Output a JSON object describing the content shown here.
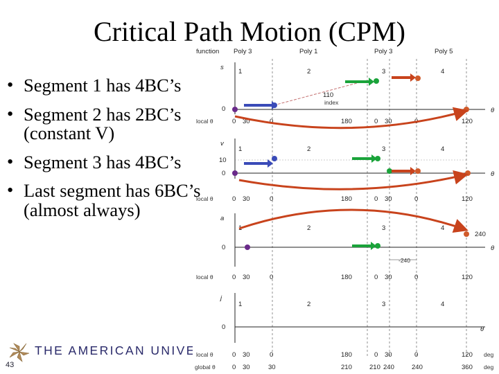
{
  "title": "Critical Path Motion (CPM)",
  "bullets": [
    "Segment 1 has 4BC’s",
    "Segment 2 has 2BC’s (constant V)",
    "Segment 3 has 4BC’s",
    "Last segment has 6BC’s (almost always)"
  ],
  "bullet_symbol": "•",
  "footer": {
    "logo_text": "THE AMERICAN UNIVERSIT",
    "page_number": "43"
  },
  "diagram": {
    "header": {
      "function": "function",
      "polys": [
        "Poly 3",
        "Poly 1",
        "Poly 3",
        "Poly 5"
      ]
    },
    "segment_numbers": [
      "1",
      "2",
      "3",
      "4"
    ],
    "panels": [
      {
        "axis": "s",
        "values": [
          "0"
        ],
        "end_label": "θ",
        "extra": [
          "110",
          "index"
        ]
      },
      {
        "axis": "v",
        "values": [
          "10",
          "0"
        ],
        "end_label": "θ"
      },
      {
        "axis": "a",
        "values": [
          "0"
        ],
        "end_label": "θ",
        "extra": [
          "240",
          "-240"
        ]
      },
      {
        "axis": "j",
        "values": [
          "0"
        ],
        "end_label": "θ"
      }
    ],
    "local_theta_label": "local θ",
    "global_theta_label": "global θ",
    "local_theta": [
      "0",
      "30",
      "0",
      "180",
      "0",
      "30",
      "0",
      "120"
    ],
    "global_theta": [
      "0",
      "30",
      "30",
      "210",
      "210",
      "240",
      "240",
      "360"
    ],
    "deg_label": "deg"
  },
  "colors": {
    "blue": "#3a4bb8",
    "green": "#1aa33a",
    "red": "#c8431c",
    "purple": "#6a2a8a",
    "orange": "#d05a2a"
  }
}
